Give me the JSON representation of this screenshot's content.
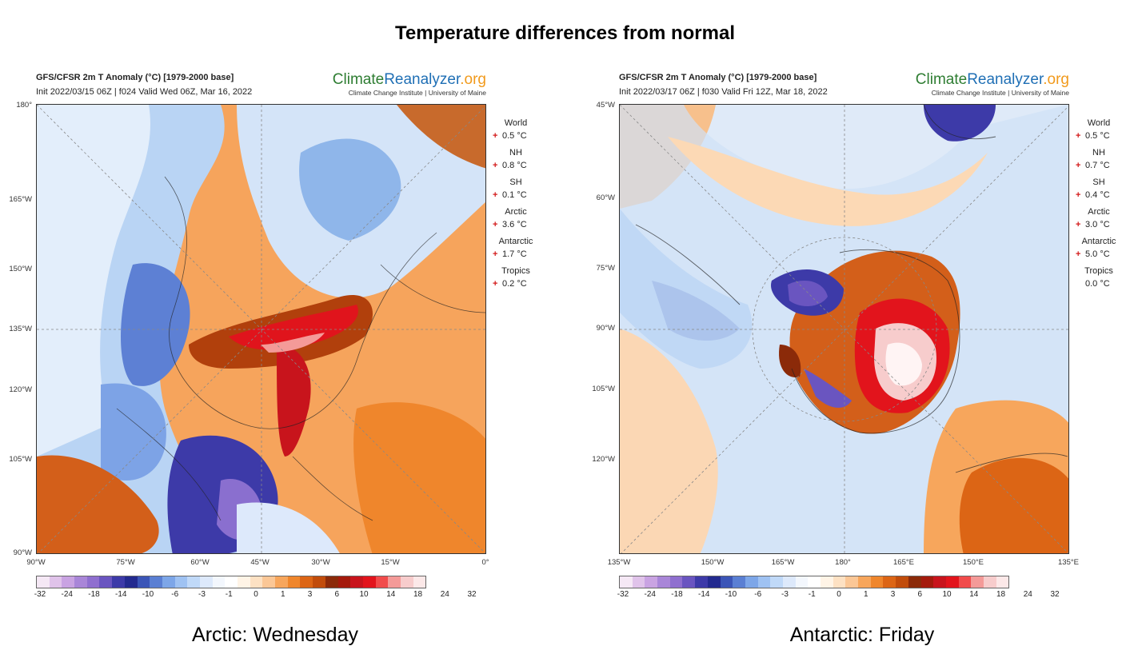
{
  "figure_title": "Temperature differences from normal",
  "colorbar_ticks": [
    "-32",
    "-24",
    "-18",
    "-14",
    "-10",
    "-6",
    "-3",
    "-1",
    "0",
    "1",
    "3",
    "6",
    "10",
    "14",
    "18",
    "24",
    "32"
  ],
  "colorbar_colors": [
    "#f5e8f5",
    "#e0c3ea",
    "#c9a3e2",
    "#a986d8",
    "#8f6fcf",
    "#6a55c0",
    "#3d3aa8",
    "#232a8f",
    "#3b55b7",
    "#5a7fd3",
    "#7da6e8",
    "#9fc2f2",
    "#c0d9f8",
    "#dde9fb",
    "#f3f7fd",
    "#ffffff",
    "#fff4e6",
    "#fde1c3",
    "#fbc796",
    "#f7a65c",
    "#ef862c",
    "#dc6515",
    "#c14c0b",
    "#8b2a09",
    "#a41a0c",
    "#c8141c",
    "#e2141c",
    "#f14b4b",
    "#f49a98",
    "#f7cccc",
    "#fce8e8"
  ],
  "panels": [
    {
      "header_title": "GFS/CFSR 2m T Anomaly (°C) [1979-2000 base]",
      "init_line": "Init 2022/03/15 06Z | f024 Valid Wed 06Z, Mar 16, 2022",
      "brand_part1": "Climate",
      "brand_part2": "Reanalyzer",
      "brand_part3": ".org",
      "brand_sub": "Climate Change Institute | University of Maine",
      "lat_labels": [
        "180°",
        "165°W",
        "150°W",
        "135°W",
        "120°W",
        "105°W",
        "90°W"
      ],
      "lon_labels": [
        "90°W",
        "75°W",
        "60°W",
        "45°W",
        "30°W",
        "15°W",
        "0°"
      ],
      "stats": [
        {
          "name": "World",
          "sign": "+",
          "value": "0.5 °C"
        },
        {
          "name": "NH",
          "sign": "+",
          "value": "0.8 °C"
        },
        {
          "name": "SH",
          "sign": "+",
          "value": "0.1 °C"
        },
        {
          "name": "Arctic",
          "sign": "+",
          "value": "3.6 °C"
        },
        {
          "name": "Antarctic",
          "sign": "+",
          "value": "1.7 °C"
        },
        {
          "name": "Tropics",
          "sign": "+",
          "value": "0.2 °C"
        }
      ],
      "caption": "Arctic: Wednesday"
    },
    {
      "header_title": "GFS/CFSR 2m T Anomaly (°C) [1979-2000 base]",
      "init_line": "Init 2022/03/17 06Z | f030 Valid Fri 12Z, Mar 18, 2022",
      "brand_part1": "Climate",
      "brand_part2": "Reanalyzer",
      "brand_part3": ".org",
      "brand_sub": "Climate Change Institute | University of Maine",
      "lat_labels": [
        "45°W",
        "60°W",
        "75°W",
        "90°W",
        "105°W",
        "120°W"
      ],
      "lon_labels": [
        "135°W",
        "150°W",
        "165°W",
        "180°",
        "165°E",
        "150°E",
        "135°E"
      ],
      "stats": [
        {
          "name": "World",
          "sign": "+",
          "value": "0.5 °C"
        },
        {
          "name": "NH",
          "sign": "+",
          "value": "0.7 °C"
        },
        {
          "name": "SH",
          "sign": "+",
          "value": "0.4 °C"
        },
        {
          "name": "Arctic",
          "sign": "+",
          "value": "3.0 °C"
        },
        {
          "name": "Antarctic",
          "sign": "+",
          "value": "5.0 °C"
        },
        {
          "name": "Tropics",
          "sign": "",
          "value": "0.0 °C"
        }
      ],
      "caption": "Antarctic: Friday"
    }
  ]
}
